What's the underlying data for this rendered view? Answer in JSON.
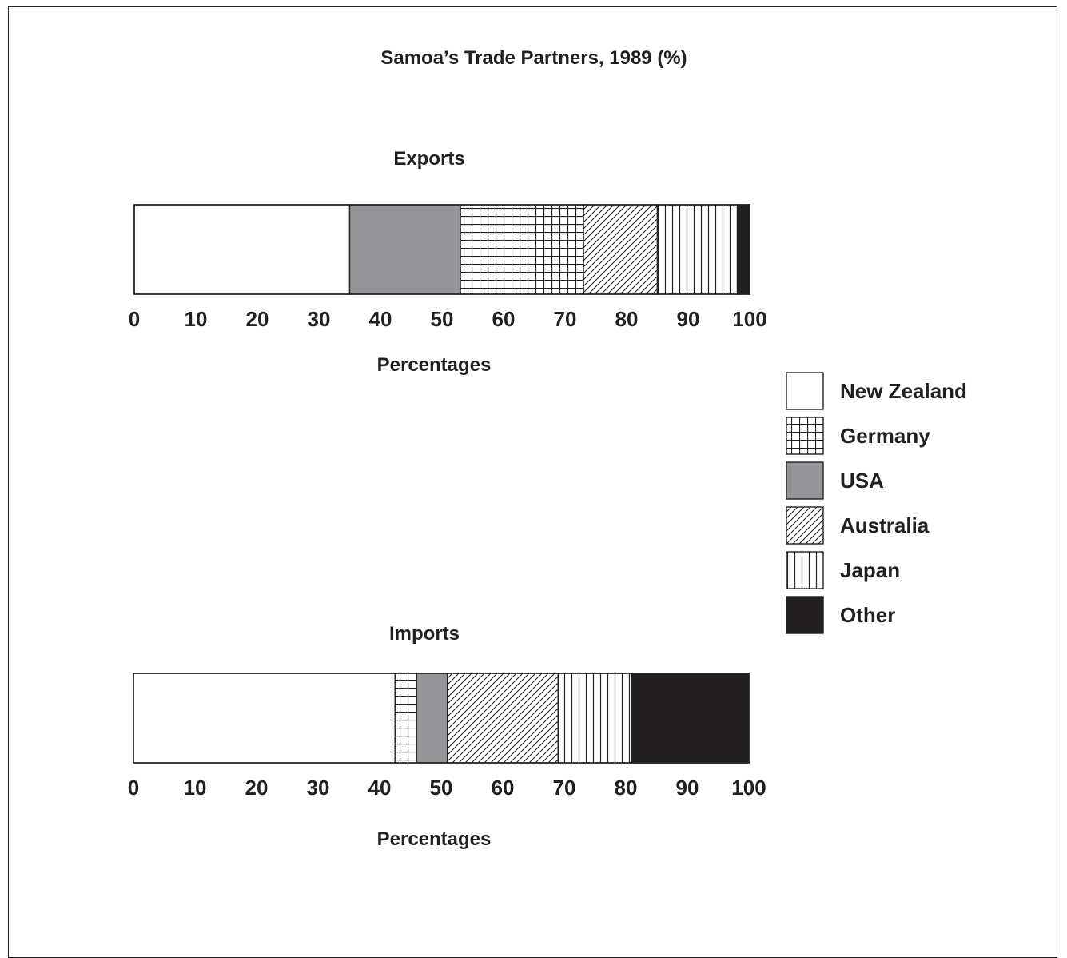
{
  "chart_data": {
    "type": "bar",
    "stacked": true,
    "orientation": "horizontal",
    "title": "Samoa’s Trade Partners, 1989 (%)",
    "xlabel": "Percentages",
    "xlim": [
      0,
      100
    ],
    "xticks": [
      0,
      10,
      20,
      30,
      40,
      50,
      60,
      70,
      80,
      90,
      100
    ],
    "legend": {
      "placement": "right",
      "entries": [
        {
          "label": "New Zealand",
          "pattern": "blank"
        },
        {
          "label": "Germany",
          "pattern": "grid"
        },
        {
          "label": "USA",
          "pattern": "gray"
        },
        {
          "label": "Australia",
          "pattern": "diagonal"
        },
        {
          "label": "Japan",
          "pattern": "vertical"
        },
        {
          "label": "Other",
          "pattern": "black"
        }
      ]
    },
    "charts": [
      {
        "name": "Exports",
        "segments": [
          {
            "partner": "New Zealand",
            "value": 35
          },
          {
            "partner": "USA",
            "value": 18
          },
          {
            "partner": "Germany",
            "value": 20
          },
          {
            "partner": "Australia",
            "value": 12
          },
          {
            "partner": "Japan",
            "value": 13
          },
          {
            "partner": "Other",
            "value": 2
          }
        ]
      },
      {
        "name": "Imports",
        "segments": [
          {
            "partner": "New Zealand",
            "value": 42.5
          },
          {
            "partner": "Germany",
            "value": 3.5
          },
          {
            "partner": "USA",
            "value": 5
          },
          {
            "partner": "Australia",
            "value": 18
          },
          {
            "partner": "Japan",
            "value": 12
          },
          {
            "partner": "Other",
            "value": 19
          }
        ]
      }
    ]
  },
  "colors": {
    "ink": "#231f20",
    "usa_gray": "#939598",
    "other_black": "#231f20",
    "background": "#ffffff"
  }
}
